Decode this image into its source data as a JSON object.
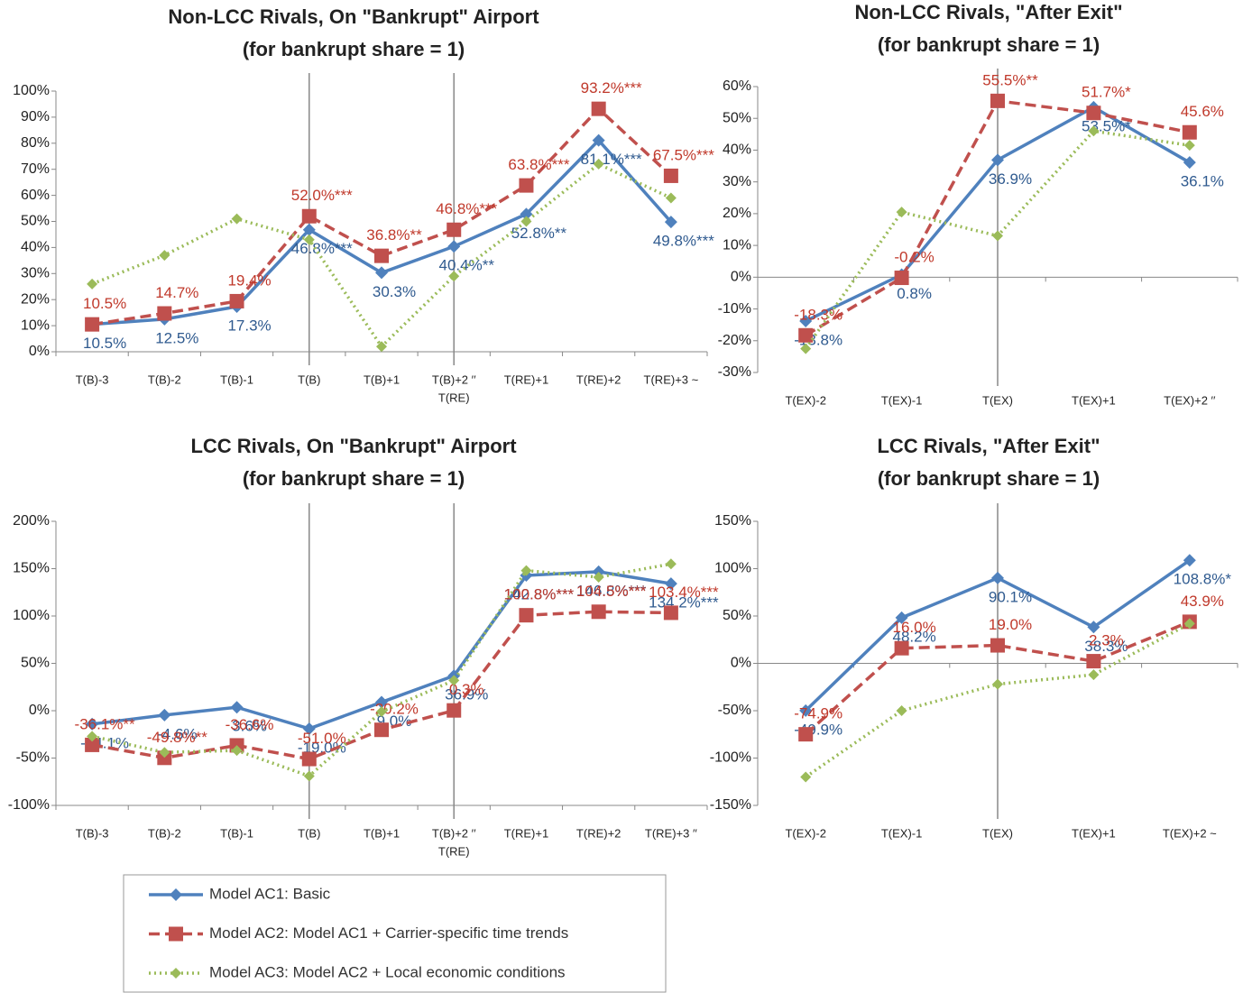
{
  "chart_data": [
    {
      "type": "line",
      "title": [
        "Non-LCC Rivals, On \"Bankrupt\" Airport",
        "(for bankrupt share = 1)"
      ],
      "categories": [
        "T(B)-3",
        "T(B)-2",
        "T(B)-1",
        "T(B)",
        "T(B)+1",
        [
          "T(B)+2 ′′",
          "T(RE)"
        ],
        "T(RE)+1",
        "T(RE)+2",
        "T(RE)+3 ~"
      ],
      "ylim": [
        0,
        100
      ],
      "yticks": [
        {
          "value": 0,
          "label": "0%"
        },
        {
          "value": 10,
          "label": "10%"
        },
        {
          "value": 20,
          "label": "20%"
        },
        {
          "value": 30,
          "label": "30%"
        },
        {
          "value": 40,
          "label": "40%"
        },
        {
          "value": 50,
          "label": "50%"
        },
        {
          "value": 60,
          "label": "60%"
        },
        {
          "value": 70,
          "label": "70%"
        },
        {
          "value": 80,
          "label": "80%"
        },
        {
          "value": 90,
          "label": "90%"
        },
        {
          "value": 100,
          "label": "100%"
        }
      ],
      "vlines_at": [
        3,
        5
      ],
      "axis_crosses_zero": false,
      "series": [
        {
          "name": "Model AC1: Basic",
          "color": "#4f81bd",
          "marker": "diamond",
          "dash": "solid",
          "values": [
            10.5,
            12.5,
            17.3,
            46.8,
            30.3,
            40.4,
            52.8,
            81.1,
            49.8
          ],
          "value_labels": [
            "10.5%",
            "12.5%",
            "17.3%",
            "46.8%***",
            "30.3%",
            "40.4%**",
            "52.8%**",
            "81.1%***",
            "49.8%***"
          ]
        },
        {
          "name": "Model AC2: Model AC1 + Carrier-specific time trends",
          "color": "#c0504d",
          "marker": "square",
          "dash": "dashed",
          "values": [
            10.5,
            14.7,
            19.4,
            52.0,
            36.8,
            46.8,
            63.8,
            93.2,
            67.5
          ],
          "value_labels": [
            "10.5%",
            "14.7%",
            "19.4%",
            "52.0%***",
            "36.8%**",
            "46.8%***",
            "63.8%***",
            "93.2%***",
            "67.5%***"
          ]
        },
        {
          "name": "Model AC3: Model AC2 + Local economic conditions",
          "color": "#9bbb59",
          "marker": "small-diamond",
          "dash": "dotted",
          "values": [
            26,
            37,
            51,
            43,
            2,
            29,
            50,
            72,
            59
          ]
        }
      ]
    },
    {
      "type": "line",
      "title": [
        "Non-LCC Rivals, \"After Exit\"",
        "(for bankrupt share = 1)"
      ],
      "categories": [
        "T(EX)-2",
        "T(EX)-1",
        "T(EX)",
        "T(EX)+1",
        "T(EX)+2 ′′"
      ],
      "ylim": [
        -30,
        60
      ],
      "yticks": [
        {
          "value": -30,
          "label": "-30%"
        },
        {
          "value": -20,
          "label": "-20%"
        },
        {
          "value": -10,
          "label": "-10%"
        },
        {
          "value": 0,
          "label": "0%"
        },
        {
          "value": 10,
          "label": "10%"
        },
        {
          "value": 20,
          "label": "20%"
        },
        {
          "value": 30,
          "label": "30%"
        },
        {
          "value": 40,
          "label": "40%"
        },
        {
          "value": 50,
          "label": "50%"
        },
        {
          "value": 60,
          "label": "60%"
        }
      ],
      "vlines_at": [
        2
      ],
      "axis_crosses_zero": true,
      "series": [
        {
          "name": "Model AC1: Basic",
          "color": "#4f81bd",
          "marker": "diamond",
          "dash": "solid",
          "values": [
            -13.8,
            0.8,
            36.9,
            53.5,
            36.1
          ],
          "value_labels": [
            "-13.8%",
            "0.8%",
            "36.9%",
            "53.5%*",
            "36.1%"
          ]
        },
        {
          "name": "Model AC2: Model AC1 + Carrier-specific time trends",
          "color": "#c0504d",
          "marker": "square",
          "dash": "dashed",
          "values": [
            -18.3,
            -0.2,
            55.5,
            51.7,
            45.6
          ],
          "value_labels": [
            "-18.3%",
            "-0.2%",
            "55.5%**",
            "51.7%*",
            "45.6%"
          ]
        },
        {
          "name": "Model AC3: Model AC2 + Local economic conditions",
          "color": "#9bbb59",
          "marker": "small-diamond",
          "dash": "dotted",
          "values": [
            -22.5,
            20.5,
            13,
            46,
            41.5
          ]
        }
      ]
    },
    {
      "type": "line",
      "title": [
        "LCC Rivals, On \"Bankrupt\" Airport",
        "(for bankrupt share = 1)"
      ],
      "categories": [
        "T(B)-3",
        "T(B)-2",
        "T(B)-1",
        "T(B)",
        "T(B)+1",
        [
          "T(B)+2 ′′",
          "T(RE)"
        ],
        "T(RE)+1",
        "T(RE)+2",
        "T(RE)+3 ′′"
      ],
      "ylim": [
        -100,
        200
      ],
      "yticks": [
        {
          "value": -100,
          "label": "-100%"
        },
        {
          "value": -50,
          "label": "-50%"
        },
        {
          "value": 0,
          "label": "0%"
        },
        {
          "value": 50,
          "label": "50%"
        },
        {
          "value": 100,
          "label": "100%"
        },
        {
          "value": 150,
          "label": "150%"
        },
        {
          "value": 200,
          "label": "200%"
        }
      ],
      "vlines_at": [
        3,
        5
      ],
      "axis_crosses_zero": false,
      "series": [
        {
          "name": "Model AC1: Basic",
          "color": "#4f81bd",
          "marker": "diamond",
          "dash": "solid",
          "values": [
            -14.1,
            -4.6,
            3.6,
            -19.0,
            9.0,
            36.9,
            142.8,
            146.8,
            134.2
          ],
          "value_labels": [
            "-14.1%",
            "-4.6%",
            "3.6%",
            "-19.0%",
            "9.0%",
            "36.9%",
            "142.8%***",
            "146.8%***",
            "134.2%***"
          ]
        },
        {
          "name": "Model AC2: Model AC1 + Carrier-specific time trends",
          "color": "#c0504d",
          "marker": "square",
          "dash": "dashed",
          "values": [
            -36.1,
            -49.8,
            -36.6,
            -51.0,
            -20.2,
            0.3,
            100.8,
            104.5,
            103.4
          ],
          "value_labels": [
            "-36.1%**",
            "-49.8%**",
            "-36.6%",
            "-51.0%",
            "-20.2%",
            "0.3%",
            "100.8%***",
            "104.5%***",
            "103.4%***"
          ]
        },
        {
          "name": "Model AC3: Model AC2 + Local economic conditions",
          "color": "#9bbb59",
          "marker": "small-diamond",
          "dash": "dotted",
          "values": [
            -27,
            -44,
            -42,
            -69,
            -1,
            32,
            148,
            141,
            155
          ]
        }
      ]
    },
    {
      "type": "line",
      "title": [
        "LCC Rivals, \"After Exit\"",
        "(for bankrupt share = 1)"
      ],
      "categories": [
        "T(EX)-2",
        "T(EX)-1",
        "T(EX)",
        "T(EX)+1",
        "T(EX)+2 ~"
      ],
      "ylim": [
        -150,
        150
      ],
      "yticks": [
        {
          "value": -150,
          "label": "-150%"
        },
        {
          "value": -100,
          "label": "-100%"
        },
        {
          "value": -50,
          "label": "-50%"
        },
        {
          "value": 0,
          "label": "0%"
        },
        {
          "value": 50,
          "label": "50%"
        },
        {
          "value": 100,
          "label": "100%"
        },
        {
          "value": 150,
          "label": "150%"
        }
      ],
      "vlines_at": [
        2
      ],
      "axis_crosses_zero": true,
      "series": [
        {
          "name": "Model AC1: Basic",
          "color": "#4f81bd",
          "marker": "diamond",
          "dash": "solid",
          "values": [
            -49.9,
            48.2,
            90.1,
            38.3,
            108.8
          ],
          "value_labels": [
            "-49.9%",
            "48.2%",
            "90.1%",
            "38.3%",
            "108.8%*"
          ]
        },
        {
          "name": "Model AC2: Model AC1 + Carrier-specific time trends",
          "color": "#c0504d",
          "marker": "square",
          "dash": "dashed",
          "values": [
            -74.9,
            16.0,
            19.0,
            2.3,
            43.9
          ],
          "value_labels": [
            "-74.9%",
            "16.0%",
            "19.0%",
            "2.3%",
            "43.9%"
          ]
        },
        {
          "name": "Model AC3: Model AC2 + Local economic conditions",
          "color": "#9bbb59",
          "marker": "small-diamond",
          "dash": "dotted",
          "values": [
            -120,
            -50,
            -22,
            -12,
            42
          ]
        }
      ]
    }
  ]
}
